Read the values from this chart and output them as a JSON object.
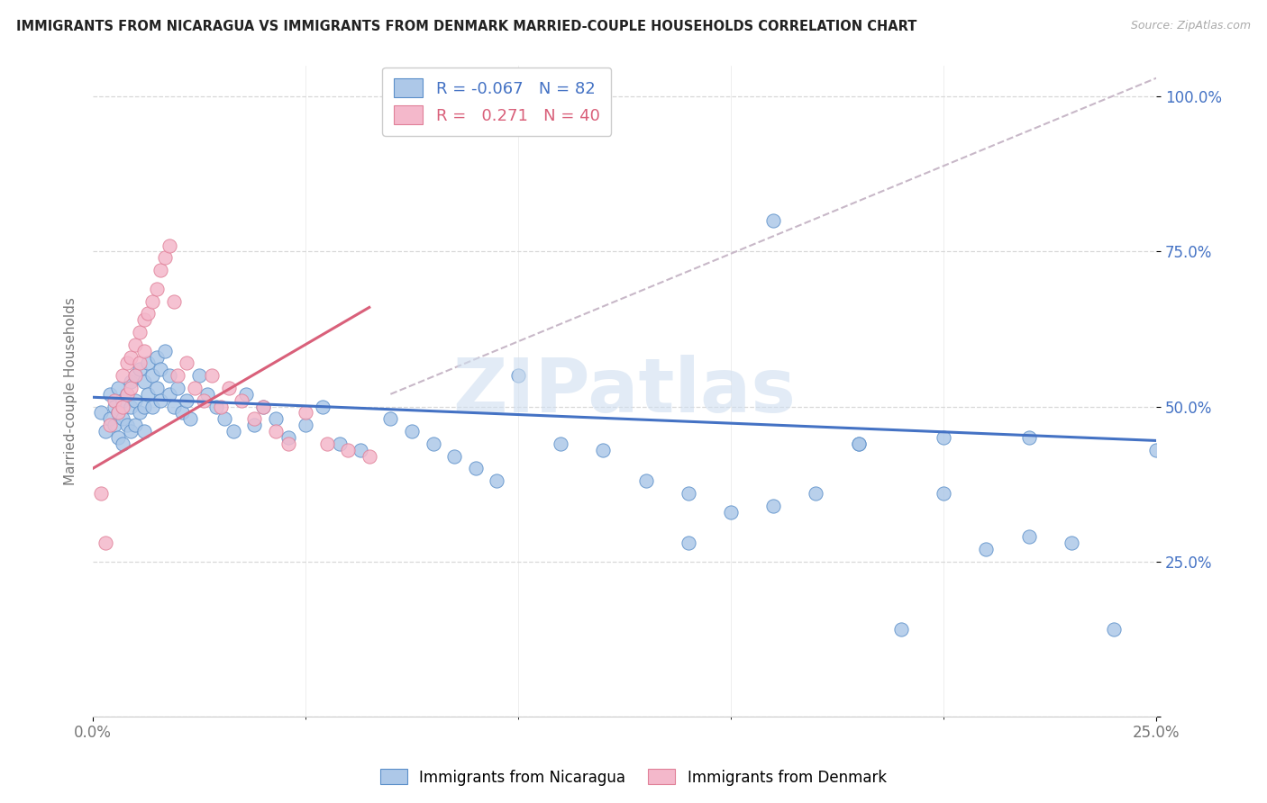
{
  "title": "IMMIGRANTS FROM NICARAGUA VS IMMIGRANTS FROM DENMARK MARRIED-COUPLE HOUSEHOLDS CORRELATION CHART",
  "source": "Source: ZipAtlas.com",
  "ylabel": "Married-couple Households",
  "xlim": [
    0.0,
    0.25
  ],
  "ylim": [
    0.0,
    1.05
  ],
  "ytick_vals": [
    0.0,
    0.25,
    0.5,
    0.75,
    1.0
  ],
  "ytick_labels": [
    "",
    "25.0%",
    "50.0%",
    "75.0%",
    "100.0%"
  ],
  "xtick_vals": [
    0.0,
    0.25
  ],
  "xtick_labels": [
    "0.0%",
    "25.0%"
  ],
  "nicaragua_R": -0.067,
  "nicaragua_N": 82,
  "denmark_R": 0.271,
  "denmark_N": 40,
  "nicaragua_color": "#adc8e8",
  "denmark_color": "#f4b8cb",
  "nicaragua_edge_color": "#5b8fc9",
  "denmark_edge_color": "#e08098",
  "nicaragua_line_color": "#4472c4",
  "denmark_line_color": "#d9607a",
  "dash_line_color": "#c8b8c8",
  "watermark": "ZIPatlas",
  "watermark_color": "#d0dff0",
  "nicaragua_x": [
    0.002,
    0.003,
    0.004,
    0.004,
    0.005,
    0.005,
    0.006,
    0.006,
    0.006,
    0.007,
    0.007,
    0.007,
    0.008,
    0.008,
    0.009,
    0.009,
    0.009,
    0.01,
    0.01,
    0.01,
    0.011,
    0.011,
    0.012,
    0.012,
    0.012,
    0.013,
    0.013,
    0.014,
    0.014,
    0.015,
    0.015,
    0.016,
    0.016,
    0.017,
    0.018,
    0.018,
    0.019,
    0.02,
    0.021,
    0.022,
    0.023,
    0.025,
    0.027,
    0.029,
    0.031,
    0.033,
    0.036,
    0.038,
    0.04,
    0.043,
    0.046,
    0.05,
    0.054,
    0.058,
    0.063,
    0.07,
    0.075,
    0.08,
    0.085,
    0.09,
    0.095,
    0.1,
    0.11,
    0.12,
    0.13,
    0.14,
    0.15,
    0.16,
    0.17,
    0.18,
    0.19,
    0.2,
    0.21,
    0.22,
    0.23,
    0.24,
    0.25,
    0.18,
    0.16,
    0.14,
    0.2,
    0.22
  ],
  "nicaragua_y": [
    0.49,
    0.46,
    0.52,
    0.48,
    0.5,
    0.47,
    0.53,
    0.49,
    0.45,
    0.51,
    0.48,
    0.44,
    0.52,
    0.47,
    0.54,
    0.5,
    0.46,
    0.55,
    0.51,
    0.47,
    0.56,
    0.49,
    0.54,
    0.5,
    0.46,
    0.57,
    0.52,
    0.55,
    0.5,
    0.58,
    0.53,
    0.56,
    0.51,
    0.59,
    0.55,
    0.52,
    0.5,
    0.53,
    0.49,
    0.51,
    0.48,
    0.55,
    0.52,
    0.5,
    0.48,
    0.46,
    0.52,
    0.47,
    0.5,
    0.48,
    0.45,
    0.47,
    0.5,
    0.44,
    0.43,
    0.48,
    0.46,
    0.44,
    0.42,
    0.4,
    0.38,
    0.55,
    0.44,
    0.43,
    0.38,
    0.36,
    0.33,
    0.8,
    0.36,
    0.44,
    0.14,
    0.45,
    0.27,
    0.45,
    0.28,
    0.14,
    0.43,
    0.44,
    0.34,
    0.28,
    0.36,
    0.29
  ],
  "denmark_x": [
    0.002,
    0.003,
    0.004,
    0.005,
    0.006,
    0.007,
    0.007,
    0.008,
    0.008,
    0.009,
    0.009,
    0.01,
    0.01,
    0.011,
    0.011,
    0.012,
    0.012,
    0.013,
    0.014,
    0.015,
    0.016,
    0.017,
    0.018,
    0.019,
    0.02,
    0.022,
    0.024,
    0.026,
    0.028,
    0.03,
    0.032,
    0.035,
    0.038,
    0.04,
    0.043,
    0.046,
    0.05,
    0.055,
    0.06,
    0.065
  ],
  "denmark_y": [
    0.36,
    0.28,
    0.47,
    0.51,
    0.49,
    0.55,
    0.5,
    0.57,
    0.52,
    0.58,
    0.53,
    0.6,
    0.55,
    0.62,
    0.57,
    0.64,
    0.59,
    0.65,
    0.67,
    0.69,
    0.72,
    0.74,
    0.76,
    0.67,
    0.55,
    0.57,
    0.53,
    0.51,
    0.55,
    0.5,
    0.53,
    0.51,
    0.48,
    0.5,
    0.46,
    0.44,
    0.49,
    0.44,
    0.43,
    0.42
  ],
  "legend_text1": "R = -0.067   N = 82",
  "legend_text2": "R =   0.271   N = 40",
  "bottom_label1": "Immigrants from Nicaragua",
  "bottom_label2": "Immigrants from Denmark"
}
